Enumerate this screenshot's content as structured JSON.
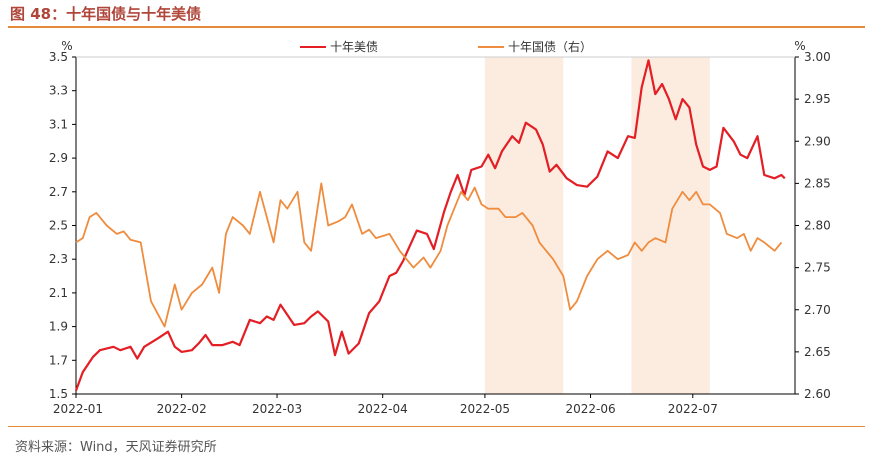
{
  "header": {
    "title": "图 48：十年国债与十年美债"
  },
  "footer": {
    "source": "资料来源：Wind，天风证券研究所"
  },
  "colors": {
    "us10y": "#e31e24",
    "cn10y": "#ef8c3e",
    "shade": "#fbe5d6"
  },
  "chart_data": {
    "type": "line",
    "title": "",
    "left_axis": {
      "unit": "%",
      "min": 1.5,
      "max": 3.5,
      "ticks": [
        "1.5",
        "1.7",
        "1.9",
        "2.1",
        "2.3",
        "2.5",
        "2.7",
        "2.9",
        "3.1",
        "3.3",
        "3.5"
      ]
    },
    "right_axis": {
      "unit": "%",
      "min": 2.6,
      "max": 3.0,
      "ticks": [
        "2.60",
        "2.65",
        "2.70",
        "2.75",
        "2.80",
        "2.85",
        "2.90",
        "2.95",
        "3.00"
      ]
    },
    "x_axis": {
      "min": "2022-01-01",
      "max": "2022-07-31",
      "ticks": [
        {
          "label": "2022-01",
          "date": "2022-01-01"
        },
        {
          "label": "2022-02",
          "date": "2022-02-01"
        },
        {
          "label": "2022-03",
          "date": "2022-03-01"
        },
        {
          "label": "2022-04",
          "date": "2022-04-01"
        },
        {
          "label": "2022-05",
          "date": "2022-05-01"
        },
        {
          "label": "2022-06",
          "date": "2022-06-01"
        },
        {
          "label": "2022-07",
          "date": "2022-07-01"
        }
      ]
    },
    "shaded_periods": [
      {
        "start": "2022-05-01",
        "end": "2022-05-24"
      },
      {
        "start": "2022-06-13",
        "end": "2022-07-06"
      }
    ],
    "legend": {
      "position": "top-center"
    },
    "series": [
      {
        "name": "十年美债",
        "axis": "left",
        "color": "#e31e24",
        "points": [
          [
            "2022-01-01",
            1.52
          ],
          [
            "2022-01-03",
            1.63
          ],
          [
            "2022-01-06",
            1.72
          ],
          [
            "2022-01-08",
            1.76
          ],
          [
            "2022-01-12",
            1.78
          ],
          [
            "2022-01-14",
            1.76
          ],
          [
            "2022-01-17",
            1.78
          ],
          [
            "2022-01-19",
            1.71
          ],
          [
            "2022-01-21",
            1.78
          ],
          [
            "2022-01-25",
            1.83
          ],
          [
            "2022-01-28",
            1.87
          ],
          [
            "2022-01-30",
            1.78
          ],
          [
            "2022-02-01",
            1.75
          ],
          [
            "2022-02-04",
            1.76
          ],
          [
            "2022-02-06",
            1.8
          ],
          [
            "2022-02-08",
            1.85
          ],
          [
            "2022-02-10",
            1.79
          ],
          [
            "2022-02-13",
            1.79
          ],
          [
            "2022-02-16",
            1.81
          ],
          [
            "2022-02-18",
            1.79
          ],
          [
            "2022-02-21",
            1.94
          ],
          [
            "2022-02-24",
            1.92
          ],
          [
            "2022-02-26",
            1.96
          ],
          [
            "2022-02-28",
            1.94
          ],
          [
            "2022-03-02",
            2.03
          ],
          [
            "2022-03-04",
            1.97
          ],
          [
            "2022-03-06",
            1.91
          ],
          [
            "2022-03-09",
            1.92
          ],
          [
            "2022-03-11",
            1.96
          ],
          [
            "2022-03-13",
            1.99
          ],
          [
            "2022-03-16",
            1.93
          ],
          [
            "2022-03-18",
            1.73
          ],
          [
            "2022-03-20",
            1.87
          ],
          [
            "2022-03-22",
            1.74
          ],
          [
            "2022-03-25",
            1.8
          ],
          [
            "2022-03-28",
            1.98
          ],
          [
            "2022-03-31",
            2.05
          ],
          [
            "2022-04-03",
            2.2
          ],
          [
            "2022-04-05",
            2.22
          ],
          [
            "2022-04-07",
            2.29
          ],
          [
            "2022-04-09",
            2.38
          ],
          [
            "2022-04-11",
            2.47
          ],
          [
            "2022-04-14",
            2.45
          ],
          [
            "2022-04-16",
            2.36
          ],
          [
            "2022-04-19",
            2.58
          ],
          [
            "2022-04-21",
            2.7
          ],
          [
            "2022-04-23",
            2.8
          ],
          [
            "2022-04-25",
            2.68
          ],
          [
            "2022-04-27",
            2.83
          ],
          [
            "2022-04-30",
            2.85
          ],
          [
            "2022-05-02",
            2.92
          ],
          [
            "2022-05-04",
            2.84
          ],
          [
            "2022-05-06",
            2.94
          ],
          [
            "2022-05-09",
            3.03
          ],
          [
            "2022-05-11",
            2.99
          ],
          [
            "2022-05-13",
            3.11
          ],
          [
            "2022-05-16",
            3.07
          ],
          [
            "2022-05-18",
            2.98
          ],
          [
            "2022-05-20",
            2.82
          ],
          [
            "2022-05-22",
            2.86
          ],
          [
            "2022-05-25",
            2.78
          ],
          [
            "2022-05-28",
            2.74
          ],
          [
            "2022-05-31",
            2.73
          ],
          [
            "2022-06-03",
            2.79
          ],
          [
            "2022-06-06",
            2.94
          ],
          [
            "2022-06-09",
            2.9
          ],
          [
            "2022-06-12",
            3.03
          ],
          [
            "2022-06-14",
            3.02
          ],
          [
            "2022-06-16",
            3.32
          ],
          [
            "2022-06-18",
            3.48
          ],
          [
            "2022-06-20",
            3.28
          ],
          [
            "2022-06-22",
            3.34
          ],
          [
            "2022-06-24",
            3.25
          ],
          [
            "2022-06-26",
            3.13
          ],
          [
            "2022-06-28",
            3.25
          ],
          [
            "2022-06-30",
            3.2
          ],
          [
            "2022-07-02",
            2.98
          ],
          [
            "2022-07-04",
            2.85
          ],
          [
            "2022-07-06",
            2.83
          ],
          [
            "2022-07-08",
            2.85
          ],
          [
            "2022-07-10",
            3.08
          ],
          [
            "2022-07-13",
            3.0
          ],
          [
            "2022-07-15",
            2.92
          ],
          [
            "2022-07-17",
            2.9
          ],
          [
            "2022-07-20",
            3.03
          ],
          [
            "2022-07-22",
            2.8
          ],
          [
            "2022-07-25",
            2.78
          ],
          [
            "2022-07-27",
            2.8
          ],
          [
            "2022-07-28",
            2.78
          ]
        ]
      },
      {
        "name": "十年国债（右）",
        "axis": "right",
        "color": "#ef8c3e",
        "points": [
          [
            "2022-01-01",
            2.78
          ],
          [
            "2022-01-03",
            2.785
          ],
          [
            "2022-01-05",
            2.81
          ],
          [
            "2022-01-07",
            2.815
          ],
          [
            "2022-01-10",
            2.8
          ],
          [
            "2022-01-13",
            2.79
          ],
          [
            "2022-01-15",
            2.793
          ],
          [
            "2022-01-17",
            2.783
          ],
          [
            "2022-01-20",
            2.78
          ],
          [
            "2022-01-23",
            2.71
          ],
          [
            "2022-01-27",
            2.68
          ],
          [
            "2022-01-30",
            2.73
          ],
          [
            "2022-02-01",
            2.7
          ],
          [
            "2022-02-04",
            2.72
          ],
          [
            "2022-02-07",
            2.73
          ],
          [
            "2022-02-10",
            2.75
          ],
          [
            "2022-02-12",
            2.72
          ],
          [
            "2022-02-14",
            2.79
          ],
          [
            "2022-02-16",
            2.81
          ],
          [
            "2022-02-19",
            2.8
          ],
          [
            "2022-02-21",
            2.79
          ],
          [
            "2022-02-24",
            2.84
          ],
          [
            "2022-02-26",
            2.81
          ],
          [
            "2022-02-28",
            2.78
          ],
          [
            "2022-03-02",
            2.83
          ],
          [
            "2022-03-04",
            2.82
          ],
          [
            "2022-03-07",
            2.84
          ],
          [
            "2022-03-09",
            2.78
          ],
          [
            "2022-03-11",
            2.77
          ],
          [
            "2022-03-14",
            2.85
          ],
          [
            "2022-03-16",
            2.8
          ],
          [
            "2022-03-19",
            2.805
          ],
          [
            "2022-03-21",
            2.81
          ],
          [
            "2022-03-23",
            2.825
          ],
          [
            "2022-03-26",
            2.79
          ],
          [
            "2022-03-28",
            2.795
          ],
          [
            "2022-03-30",
            2.785
          ],
          [
            "2022-04-03",
            2.79
          ],
          [
            "2022-04-06",
            2.77
          ],
          [
            "2022-04-08",
            2.76
          ],
          [
            "2022-04-10",
            2.75
          ],
          [
            "2022-04-13",
            2.762
          ],
          [
            "2022-04-15",
            2.75
          ],
          [
            "2022-04-18",
            2.77
          ],
          [
            "2022-04-20",
            2.8
          ],
          [
            "2022-04-22",
            2.82
          ],
          [
            "2022-04-24",
            2.84
          ],
          [
            "2022-04-26",
            2.83
          ],
          [
            "2022-04-28",
            2.845
          ],
          [
            "2022-04-30",
            2.825
          ],
          [
            "2022-05-02",
            2.82
          ],
          [
            "2022-05-05",
            2.82
          ],
          [
            "2022-05-07",
            2.81
          ],
          [
            "2022-05-10",
            2.81
          ],
          [
            "2022-05-12",
            2.815
          ],
          [
            "2022-05-15",
            2.8
          ],
          [
            "2022-05-17",
            2.78
          ],
          [
            "2022-05-19",
            2.77
          ],
          [
            "2022-05-21",
            2.76
          ],
          [
            "2022-05-24",
            2.74
          ],
          [
            "2022-05-26",
            2.7
          ],
          [
            "2022-05-28",
            2.71
          ],
          [
            "2022-05-31",
            2.74
          ],
          [
            "2022-06-03",
            2.76
          ],
          [
            "2022-06-06",
            2.77
          ],
          [
            "2022-06-09",
            2.76
          ],
          [
            "2022-06-12",
            2.765
          ],
          [
            "2022-06-14",
            2.78
          ],
          [
            "2022-06-16",
            2.77
          ],
          [
            "2022-06-18",
            2.78
          ],
          [
            "2022-06-20",
            2.785
          ],
          [
            "2022-06-23",
            2.78
          ],
          [
            "2022-06-25",
            2.82
          ],
          [
            "2022-06-28",
            2.84
          ],
          [
            "2022-06-30",
            2.83
          ],
          [
            "2022-07-02",
            2.84
          ],
          [
            "2022-07-04",
            2.825
          ],
          [
            "2022-07-06",
            2.825
          ],
          [
            "2022-07-09",
            2.815
          ],
          [
            "2022-07-11",
            2.79
          ],
          [
            "2022-07-14",
            2.785
          ],
          [
            "2022-07-16",
            2.79
          ],
          [
            "2022-07-18",
            2.77
          ],
          [
            "2022-07-20",
            2.785
          ],
          [
            "2022-07-22",
            2.78
          ],
          [
            "2022-07-25",
            2.77
          ],
          [
            "2022-07-27",
            2.78
          ]
        ]
      }
    ]
  }
}
